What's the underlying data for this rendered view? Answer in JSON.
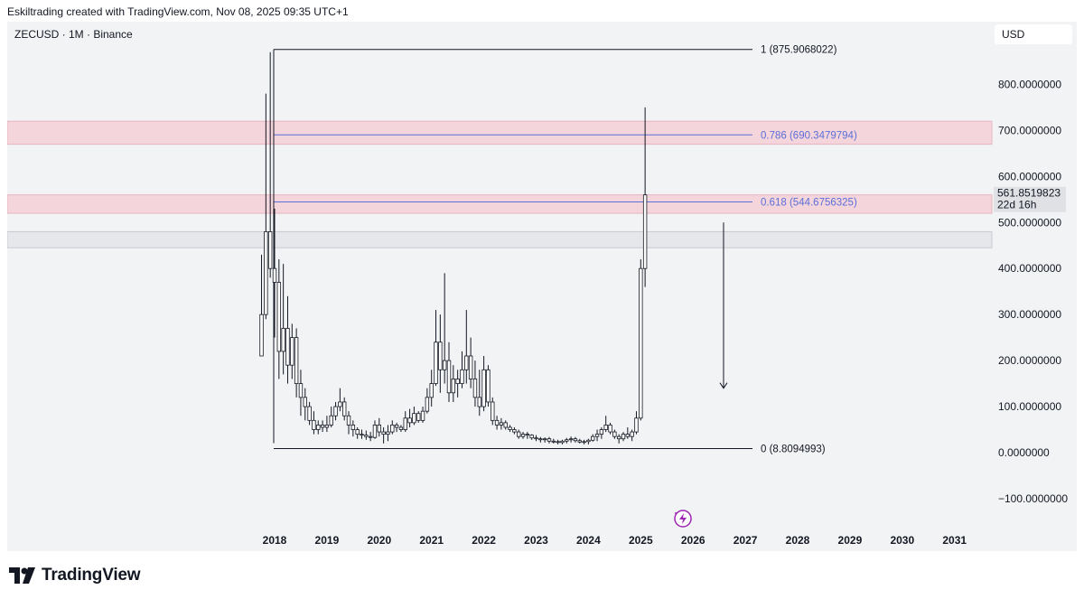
{
  "header": {
    "text": "Eskiltrading created with TradingView.com, Nov 08, 2025 09:35 UTC+1"
  },
  "symbol_label": "ZECUSD · 1M · Binance",
  "currency_button": "USD",
  "footer": {
    "brand": "TradingView"
  },
  "colors": {
    "candle_body": "#ffffff",
    "candle_border": "#131722",
    "fib_line": "#5b6fd8",
    "fib_line_extreme": "#131722",
    "zone_fill": "#f5d5dc",
    "zone_border": "#e8b4be",
    "grey_zone_fill": "#e6e7ea",
    "background": "#f2f3f5"
  },
  "chart_data": {
    "type": "candlestick",
    "title": "",
    "price_axis": {
      "ticks": [
        800,
        700,
        600,
        500,
        400,
        300,
        200,
        100,
        0,
        -100
      ],
      "labels": [
        "800.0000000",
        "700.0000000",
        "600.0000000",
        "500.0000000",
        "400.0000000",
        "300.0000000",
        "200.0000000",
        "100.0000000",
        "0.0000000",
        "−100.0000000"
      ],
      "range": [
        -130,
        980
      ]
    },
    "time_axis": {
      "ticks": [
        "2018",
        "2019",
        "2020",
        "2021",
        "2022",
        "2023",
        "2024",
        "2025",
        "2026",
        "2027",
        "2028",
        "2029",
        "2030",
        "2031"
      ]
    },
    "last_price": {
      "value": "561.8519823",
      "countdown": "22d 16h",
      "num": 561.85
    },
    "fib_levels": [
      {
        "ratio": "1",
        "price": "875.9068022",
        "num": 875.9,
        "label": "1 (875.9068022)"
      },
      {
        "ratio": "0.786",
        "price": "690.3479794",
        "num": 690.35,
        "label": "0.786 (690.3479794)"
      },
      {
        "ratio": "0.618",
        "price": "544.6756325",
        "num": 544.68,
        "label": "0.618 (544.6756325)"
      },
      {
        "ratio": "0",
        "price": "8.8094993",
        "num": 8.81,
        "label": "0 (8.8094993)"
      }
    ],
    "zones": [
      {
        "kind": "supply",
        "from": 670,
        "to": 720
      },
      {
        "kind": "supply",
        "from": 520,
        "to": 560
      },
      {
        "kind": "neutral",
        "from": 445,
        "to": 480
      }
    ],
    "projection_arrow": {
      "from": 500,
      "to": 140,
      "date": "2026-08"
    },
    "candles_start": "2017-10",
    "candles_interval": "1M",
    "candles": [
      [
        210,
        430,
        210,
        300
      ],
      [
        300,
        780,
        290,
        480
      ],
      [
        480,
        870,
        380,
        400
      ],
      [
        400,
        530,
        250,
        370
      ],
      [
        370,
        420,
        160,
        220
      ],
      [
        220,
        410,
        170,
        270
      ],
      [
        270,
        340,
        150,
        190
      ],
      [
        190,
        280,
        160,
        250
      ],
      [
        250,
        270,
        120,
        150
      ],
      [
        150,
        180,
        80,
        120
      ],
      [
        120,
        140,
        70,
        100
      ],
      [
        100,
        110,
        60,
        70
      ],
      [
        70,
        90,
        40,
        50
      ],
      [
        50,
        70,
        40,
        60
      ],
      [
        60,
        70,
        45,
        55
      ],
      [
        55,
        80,
        45,
        60
      ],
      [
        60,
        100,
        55,
        80
      ],
      [
        80,
        110,
        70,
        100
      ],
      [
        100,
        140,
        90,
        110
      ],
      [
        110,
        120,
        70,
        80
      ],
      [
        80,
        90,
        40,
        60
      ],
      [
        60,
        70,
        35,
        50
      ],
      [
        50,
        55,
        30,
        40
      ],
      [
        40,
        50,
        30,
        38
      ],
      [
        38,
        48,
        28,
        35
      ],
      [
        35,
        45,
        25,
        33
      ],
      [
        33,
        70,
        30,
        60
      ],
      [
        60,
        75,
        35,
        45
      ],
      [
        45,
        55,
        20,
        40
      ],
      [
        40,
        60,
        25,
        45
      ],
      [
        45,
        70,
        40,
        60
      ],
      [
        60,
        65,
        45,
        55
      ],
      [
        55,
        60,
        45,
        50
      ],
      [
        50,
        90,
        45,
        75
      ],
      [
        75,
        95,
        55,
        65
      ],
      [
        65,
        100,
        60,
        85
      ],
      [
        85,
        90,
        65,
        70
      ],
      [
        70,
        100,
        65,
        90
      ],
      [
        90,
        140,
        85,
        120
      ],
      [
        120,
        180,
        100,
        150
      ],
      [
        150,
        310,
        145,
        240
      ],
      [
        240,
        300,
        130,
        180
      ],
      [
        180,
        390,
        150,
        200
      ],
      [
        200,
        240,
        110,
        130
      ],
      [
        130,
        190,
        110,
        160
      ],
      [
        160,
        180,
        120,
        150
      ],
      [
        150,
        220,
        140,
        180
      ],
      [
        180,
        310,
        150,
        210
      ],
      [
        210,
        250,
        140,
        160
      ],
      [
        160,
        200,
        100,
        120
      ],
      [
        120,
        180,
        80,
        100
      ],
      [
        100,
        210,
        90,
        180
      ],
      [
        180,
        190,
        100,
        110
      ],
      [
        110,
        120,
        60,
        70
      ],
      [
        70,
        80,
        50,
        60
      ],
      [
        60,
        75,
        50,
        65
      ],
      [
        65,
        70,
        50,
        55
      ],
      [
        55,
        60,
        45,
        50
      ],
      [
        50,
        55,
        40,
        45
      ],
      [
        45,
        50,
        30,
        35
      ],
      [
        35,
        45,
        30,
        40
      ],
      [
        40,
        45,
        30,
        38
      ],
      [
        38,
        40,
        28,
        32
      ],
      [
        32,
        38,
        25,
        30
      ],
      [
        30,
        34,
        22,
        28
      ],
      [
        28,
        33,
        22,
        30
      ],
      [
        30,
        34,
        20,
        25
      ],
      [
        25,
        30,
        20,
        24
      ],
      [
        24,
        28,
        18,
        22
      ],
      [
        22,
        28,
        18,
        25
      ],
      [
        25,
        32,
        20,
        28
      ],
      [
        28,
        35,
        22,
        30
      ],
      [
        30,
        34,
        22,
        26
      ],
      [
        26,
        30,
        20,
        23
      ],
      [
        23,
        28,
        18,
        24
      ],
      [
        24,
        30,
        18,
        27
      ],
      [
        27,
        40,
        24,
        35
      ],
      [
        35,
        50,
        25,
        40
      ],
      [
        40,
        55,
        30,
        50
      ],
      [
        50,
        80,
        45,
        60
      ],
      [
        60,
        65,
        40,
        45
      ],
      [
        45,
        50,
        30,
        35
      ],
      [
        35,
        40,
        20,
        30
      ],
      [
        30,
        45,
        25,
        40
      ],
      [
        40,
        55,
        30,
        35
      ],
      [
        35,
        50,
        25,
        45
      ],
      [
        45,
        90,
        40,
        75
      ],
      [
        75,
        420,
        70,
        400
      ],
      [
        400,
        750,
        360,
        560
      ]
    ]
  }
}
